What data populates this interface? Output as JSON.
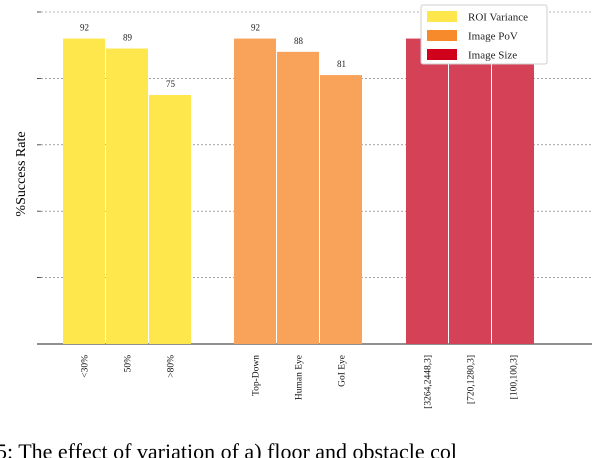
{
  "chart_data": {
    "type": "bar",
    "ylabel": "%Success Rate",
    "ylim": [
      0,
      100
    ],
    "grid": true,
    "legend_position": "top-right",
    "groups": [
      {
        "name": "ROI Variance",
        "color": "#fde74c",
        "categories": [
          "<30%",
          "50%",
          ">80%"
        ],
        "values": [
          92,
          89,
          75
        ]
      },
      {
        "name": "Image PoV",
        "color": "#f9a25a",
        "categories": [
          "Top-Down",
          "Human Eye",
          "GoI Eye"
        ],
        "values": [
          92,
          88,
          81
        ]
      },
      {
        "name": "Image Size",
        "color": "#d54157",
        "categories": [
          "[3264,2448,3]",
          "[720,1280,3]",
          "[100,100,3]"
        ],
        "values": [
          92,
          92,
          91
        ]
      }
    ]
  },
  "legend": [
    {
      "label": "ROI Variance",
      "color": "#fde74c"
    },
    {
      "label": "Image PoV",
      "color": "#f78b2c"
    },
    {
      "label": "Image Size",
      "color": "#d0021b"
    }
  ],
  "caption": "5: The effect of variation of a) floor and obstacle col"
}
